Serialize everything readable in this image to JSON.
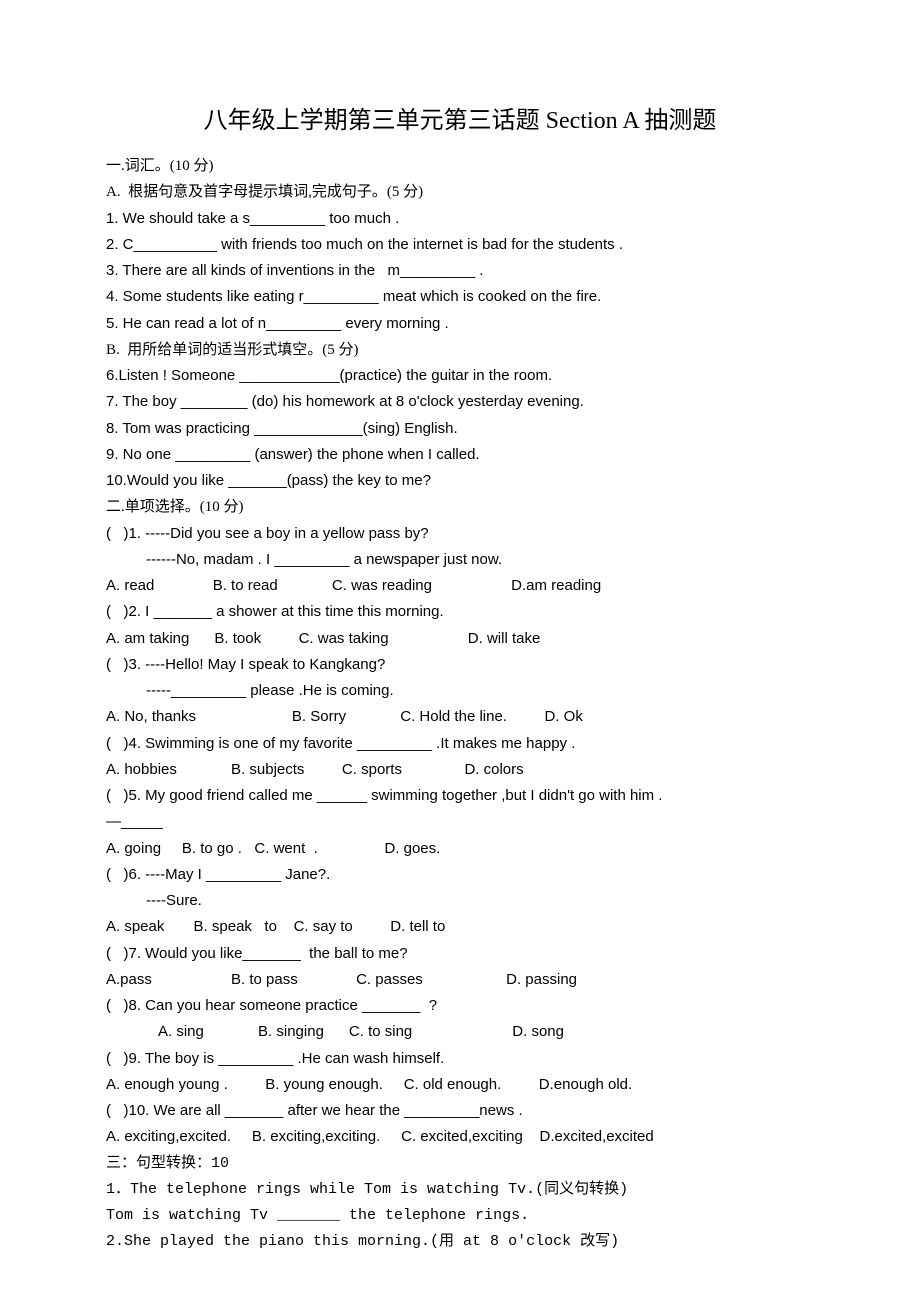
{
  "title": "八年级上学期第三单元第三话题 Section A 抽测题",
  "section1": {
    "heading": "一.词汇。(10 分)",
    "partA": {
      "heading": "A.  根据句意及首字母提示填词,完成句子。(5 分)",
      "items": [
        "1. We should take a s_________ too much .",
        "2. C__________ with friends too much on the internet is bad for the students .",
        "3. There are all kinds of inventions in the   m_________ .",
        "4. Some students like eating r_________ meat which is cooked on the fire.",
        "5. He can read a lot of n_________ every morning ."
      ]
    },
    "partB": {
      "heading": "B.  用所给单词的适当形式填空。(5 分)",
      "items": [
        "6.Listen ! Someone ____________(practice) the guitar in the room.",
        "7. The boy ________ (do) his homework at 8 o'clock yesterday evening.",
        "8. Tom was practicing _____________(sing) English.",
        "9. No one _________ (answer) the phone when I called.",
        "10.Would you like _______(pass) the key to me?"
      ]
    }
  },
  "section2": {
    "heading": "二.单项选择。(10 分)",
    "q1": {
      "stem": "(   )1. -----Did you see a boy in a yellow pass by?",
      "stem2": "------No, madam . I _________ a newspaper just now.",
      "opts": "A. read              B. to read             C. was reading                   D.am reading"
    },
    "q2": {
      "stem": "(   )2. I _______ a shower at this time this morning.",
      "opts": "A. am taking      B. took         C. was taking                   D. will take"
    },
    "q3": {
      "stem": "(   )3. ----Hello! May I speak to Kangkang?",
      "stem2": "-----_________ please .He is coming.",
      "opts": "A. No, thanks                       B. Sorry             C. Hold the line.         D. Ok"
    },
    "q4": {
      "stem": "(   )4. Swimming is one of my favorite _________ .It makes me happy .",
      "opts": "A. hobbies             B. subjects         C. sports               D. colors"
    },
    "q5": {
      "stem": "(   )5. My good friend called me ______ swimming together ,but I didn't go with him .",
      "stem2": "—_____",
      "opts": "A. going     B. to go .   C. went  .                D. goes."
    },
    "q6": {
      "stem": "(   )6. ----May I _________ Jane?.",
      "stem2": "----Sure.",
      "opts": "A. speak       B. speak   to    C. say to         D. tell to"
    },
    "q7": {
      "stem": "(   )7. Would you like_______  the ball to me?",
      "opts": "A.pass                   B. to pass              C. passes                    D. passing"
    },
    "q8": {
      "stem": "(   )8. Can you hear someone practice _______  ?",
      "opts": "A. sing             B. singing      C. to sing                        D. song"
    },
    "q9": {
      "stem": "(   )9. The boy is _________ .He can wash himself.",
      "opts": "A. enough young .         B. young enough.     C. old enough.         D.enough old."
    },
    "q10": {
      "stem": "(   )10. We are all _______ after we hear the _________news .",
      "opts": "A. exciting,excited.     B. exciting,exciting.     C. excited,exciting    D.excited,excited"
    }
  },
  "section3": {
    "heading": "三：句型转换：10",
    "q1a": "1．The telephone rings while Tom is watching Tv.(同义句转换)",
    "q1b": "Tom is watching Tv _______ the telephone rings.",
    "q2": "2.She played the piano this morning.(用 at 8 o'clock 改写)"
  }
}
